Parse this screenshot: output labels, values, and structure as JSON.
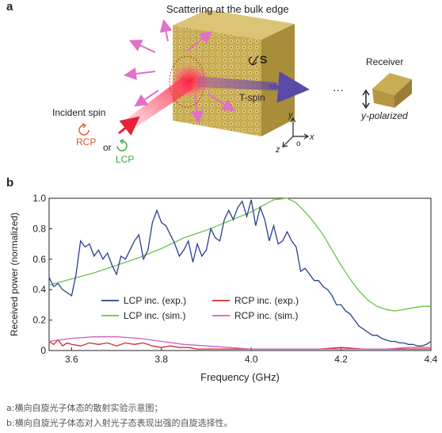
{
  "panel_a": {
    "label": "a",
    "title": "Scattering at the bulk edge",
    "spin_label": "S",
    "tspin_label": "T-spin",
    "ellipsis": "···",
    "receiver": "Receiver",
    "polarization": "y-polarized",
    "incident": "Incident spin",
    "rcp": "RCP",
    "or": "or",
    "lcp": "LCP",
    "axis_x": "x",
    "axis_y": "y",
    "axis_z": "z",
    "axis_o": "o",
    "colors": {
      "block": "#cdb35a",
      "beam": "#e8203a",
      "arrow": "#e070c8",
      "rcp": "#e0562a",
      "lcp": "#3aa83a",
      "tspin": "#5a4aa8"
    }
  },
  "panel_b": {
    "label": "b"
  },
  "chart_data": {
    "type": "line",
    "xlabel": "Frequency (GHz)",
    "ylabel": "Received power (normalized)",
    "xlim": [
      3.55,
      4.4
    ],
    "ylim": [
      0,
      1.0
    ],
    "xticks": [
      "3.6",
      "3.8",
      "4.0",
      "4.2",
      "4.4"
    ],
    "xtick_values": [
      3.6,
      3.8,
      4.0,
      4.2,
      4.4
    ],
    "yticks": [
      "0",
      "0.2",
      "0.4",
      "0.6",
      "0.8",
      "1.0"
    ],
    "ytick_values": [
      0,
      0.2,
      0.4,
      0.6,
      0.8,
      1.0
    ],
    "legend_position": "bottom-center",
    "series": [
      {
        "name": "LCP inc. (exp.)",
        "color": "#2a3f8f",
        "x": [
          3.55,
          3.56,
          3.57,
          3.58,
          3.59,
          3.6,
          3.61,
          3.62,
          3.63,
          3.64,
          3.65,
          3.66,
          3.67,
          3.68,
          3.69,
          3.7,
          3.71,
          3.72,
          3.73,
          3.74,
          3.75,
          3.76,
          3.77,
          3.78,
          3.79,
          3.8,
          3.81,
          3.82,
          3.83,
          3.84,
          3.85,
          3.86,
          3.87,
          3.88,
          3.89,
          3.9,
          3.91,
          3.92,
          3.93,
          3.94,
          3.95,
          3.96,
          3.97,
          3.98,
          3.99,
          4.0,
          4.01,
          4.02,
          4.03,
          4.04,
          4.05,
          4.06,
          4.07,
          4.08,
          4.09,
          4.1,
          4.11,
          4.12,
          4.13,
          4.14,
          4.15,
          4.16,
          4.17,
          4.18,
          4.19,
          4.2,
          4.21,
          4.22,
          4.23,
          4.24,
          4.25,
          4.26,
          4.27,
          4.28,
          4.29,
          4.3,
          4.31,
          4.32,
          4.33,
          4.34,
          4.35,
          4.36,
          4.37,
          4.38,
          4.39,
          4.4
        ],
        "y": [
          0.48,
          0.42,
          0.44,
          0.4,
          0.38,
          0.36,
          0.5,
          0.72,
          0.68,
          0.7,
          0.62,
          0.66,
          0.6,
          0.64,
          0.56,
          0.5,
          0.62,
          0.6,
          0.66,
          0.72,
          0.76,
          0.6,
          0.66,
          0.84,
          0.92,
          0.84,
          0.82,
          0.76,
          0.7,
          0.62,
          0.66,
          0.72,
          0.58,
          0.7,
          0.62,
          0.66,
          0.8,
          0.74,
          0.72,
          0.86,
          0.92,
          0.86,
          0.94,
          0.98,
          0.88,
          0.99,
          0.82,
          0.94,
          0.86,
          0.72,
          0.82,
          0.7,
          0.72,
          0.78,
          0.72,
          0.68,
          0.52,
          0.54,
          0.5,
          0.46,
          0.46,
          0.42,
          0.4,
          0.36,
          0.3,
          0.3,
          0.26,
          0.24,
          0.2,
          0.16,
          0.14,
          0.12,
          0.1,
          0.1,
          0.08,
          0.07,
          0.06,
          0.06,
          0.05,
          0.05,
          0.04,
          0.04,
          0.03,
          0.03,
          0.04,
          0.06
        ]
      },
      {
        "name": "LCP inc. (sim.)",
        "color": "#6cc24a",
        "x": [
          3.55,
          3.6,
          3.65,
          3.7,
          3.75,
          3.8,
          3.85,
          3.9,
          3.95,
          4.0,
          4.05,
          4.08,
          4.1,
          4.12,
          4.14,
          4.16,
          4.18,
          4.2,
          4.22,
          4.24,
          4.26,
          4.28,
          4.3,
          4.32,
          4.34,
          4.36,
          4.38,
          4.4
        ],
        "y": [
          0.43,
          0.47,
          0.51,
          0.56,
          0.61,
          0.67,
          0.74,
          0.79,
          0.85,
          0.91,
          0.99,
          1.0,
          0.97,
          0.91,
          0.84,
          0.76,
          0.66,
          0.56,
          0.47,
          0.39,
          0.33,
          0.29,
          0.27,
          0.26,
          0.27,
          0.28,
          0.29,
          0.29
        ]
      },
      {
        "name": "RCP inc. (exp.)",
        "color": "#d42a2a",
        "x": [
          3.55,
          3.56,
          3.57,
          3.58,
          3.59,
          3.6,
          3.62,
          3.64,
          3.66,
          3.68,
          3.7,
          3.72,
          3.74,
          3.76,
          3.78,
          3.8,
          3.82,
          3.84,
          3.86,
          3.88,
          3.9,
          3.95,
          4.0,
          4.05,
          4.1,
          4.15,
          4.2,
          4.25,
          4.3,
          4.35,
          4.4
        ],
        "y": [
          0.06,
          0.04,
          0.07,
          0.03,
          0.05,
          0.04,
          0.03,
          0.05,
          0.04,
          0.05,
          0.03,
          0.05,
          0.04,
          0.05,
          0.03,
          0.02,
          0.03,
          0.02,
          0.02,
          0.01,
          0.01,
          0.01,
          0.01,
          0.01,
          0.01,
          0.01,
          0.02,
          0.01,
          0.01,
          0.01,
          0.01
        ]
      },
      {
        "name": "RCP inc. (sim.)",
        "color": "#cc5fc2",
        "x": [
          3.55,
          3.6,
          3.65,
          3.7,
          3.75,
          3.8,
          3.85,
          3.9,
          3.95,
          4.0,
          4.05,
          4.1,
          4.15,
          4.2,
          4.25,
          4.3,
          4.35,
          4.4
        ],
        "y": [
          0.06,
          0.08,
          0.09,
          0.09,
          0.08,
          0.06,
          0.04,
          0.03,
          0.02,
          0.01,
          0.01,
          0.01,
          0.01,
          0.01,
          0.01,
          0.01,
          0.02,
          0.02
        ]
      }
    ]
  },
  "captions": [
    "a:横向自旋光子体态的散射实验示意图；",
    "b:横向自旋光子体态对入射光子态表现出强的自旋选择性。"
  ]
}
